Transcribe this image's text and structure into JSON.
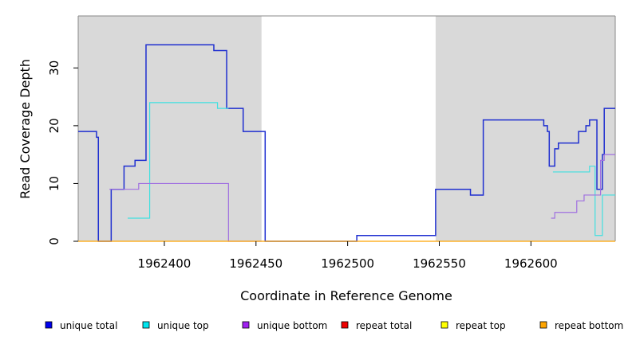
{
  "chart_data": {
    "type": "line",
    "title": "",
    "xlabel": "Coordinate in Reference Genome",
    "ylabel": "Read Coverage Depth",
    "xlim": [
      1962353,
      1962646
    ],
    "ylim": [
      0,
      39
    ],
    "x_ticks": [
      1962400,
      1962450,
      1962500,
      1962550,
      1962600
    ],
    "x_tick_labels": [
      "1962400",
      "1962450",
      "1962500",
      "1962550",
      "1962600"
    ],
    "y_ticks": [
      0,
      10,
      20,
      30
    ],
    "y_tick_labels": [
      "0",
      "10",
      "20",
      "30"
    ],
    "shaded_regions": [
      [
        1962353,
        1962453
      ],
      [
        1962548,
        1962646
      ]
    ],
    "shade_color": "#d9d9d9",
    "legend_position": "bottom",
    "series": [
      {
        "name": "unique total",
        "color": "#1f2fd0",
        "legend_color": "#0000ee",
        "steps": [
          [
            1962353,
            19
          ],
          [
            1962363,
            18
          ],
          [
            1962364,
            0
          ],
          [
            1962371,
            9
          ],
          [
            1962378,
            13
          ],
          [
            1962384,
            14
          ],
          [
            1962390,
            34
          ],
          [
            1962427,
            33
          ],
          [
            1962434,
            23
          ],
          [
            1962443,
            19
          ],
          [
            1962455,
            0
          ],
          [
            1962505,
            1
          ],
          [
            1962548,
            9
          ],
          [
            1962567,
            8
          ],
          [
            1962574,
            21
          ],
          [
            1962607,
            20
          ],
          [
            1962609,
            19
          ],
          [
            1962610,
            13
          ],
          [
            1962613,
            16
          ],
          [
            1962615,
            17
          ],
          [
            1962626,
            19
          ],
          [
            1962630,
            20
          ],
          [
            1962632,
            21
          ],
          [
            1962636,
            9
          ],
          [
            1962639,
            15
          ],
          [
            1962640,
            23
          ],
          [
            1962646,
            23
          ]
        ]
      },
      {
        "name": "unique top",
        "color": "#40e0e0",
        "legend_color": "#00e5ee",
        "steps": [
          [
            1962380,
            4
          ],
          [
            1962392,
            24
          ],
          [
            1962429,
            23
          ],
          [
            1962435,
            23
          ]
        ],
        "steps_b": [
          [
            1962612,
            12
          ],
          [
            1962632,
            13
          ],
          [
            1962635,
            1
          ],
          [
            1962639,
            8
          ],
          [
            1962646,
            8
          ]
        ]
      },
      {
        "name": "unique bottom",
        "color": "#a070e0",
        "legend_color": "#a020f0",
        "steps": [
          [
            1962370,
            9
          ],
          [
            1962386,
            10
          ],
          [
            1962435,
            0
          ],
          [
            1962453,
            0
          ]
        ],
        "steps_b": [
          [
            1962611,
            4
          ],
          [
            1962613,
            5
          ],
          [
            1962625,
            7
          ],
          [
            1962629,
            8
          ],
          [
            1962638,
            14
          ],
          [
            1962640,
            15
          ],
          [
            1962646,
            15
          ]
        ]
      },
      {
        "name": "repeat total",
        "color": "#ee0000",
        "legend_color": "#ee0000",
        "steps": []
      },
      {
        "name": "repeat top",
        "color": "#ffff00",
        "legend_color": "#ffff00",
        "steps": []
      },
      {
        "name": "repeat bottom",
        "color": "#ffa500",
        "legend_color": "#ffa500",
        "steps": [
          [
            1962353,
            0
          ],
          [
            1962646,
            0
          ]
        ]
      }
    ]
  }
}
